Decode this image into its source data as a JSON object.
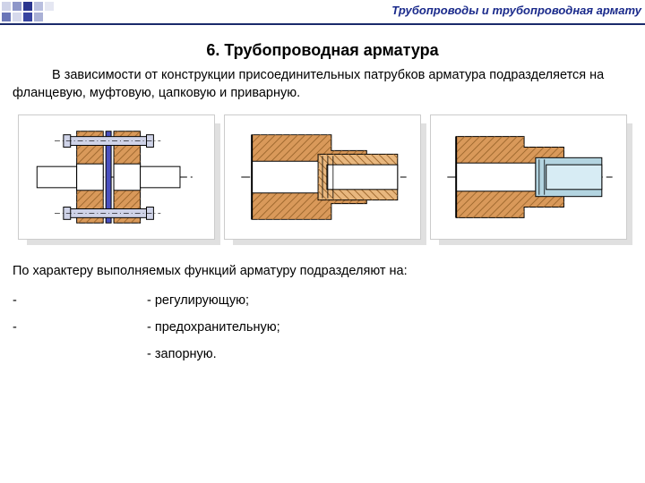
{
  "header": {
    "title": "Трубопроводы и трубопроводная армату",
    "square_colors": [
      "#cfd3e8",
      "#8e97c9",
      "#2a358f",
      "#b9bfdf",
      "#e5e7f2",
      "#6b77b8",
      "#d6d9ec",
      "#3844a0",
      "#aab1d6"
    ]
  },
  "section": {
    "title": "6.  Трубопроводная арматура",
    "intro": "В зависимости от конструкции присоединительных патрубков арматура подразделяется на фланцевую, муфтовую, цапковую и приварную.",
    "functions_intro": "По характеру выполняемых функций арматуру подразделяют на:",
    "items": [
      {
        "dash": "-",
        "text": "- регулирующую;"
      },
      {
        "dash": "-",
        "text": "- предохранительную;"
      },
      {
        "dash": "",
        "text": "- запорную."
      }
    ]
  },
  "figures": {
    "stroke": "#000000",
    "fill_metal": "#d9995a",
    "fill_metal_light": "#e8b77e",
    "fill_steel": "#b3d4e0",
    "hatch": "#a06a30",
    "axis": "#000000",
    "fig1": {
      "type": "flange_pair"
    },
    "fig2": {
      "type": "coupling"
    },
    "fig3": {
      "type": "socket"
    }
  },
  "colors": {
    "rule": "#1a2a6b",
    "header_text": "#1a2a8b"
  }
}
